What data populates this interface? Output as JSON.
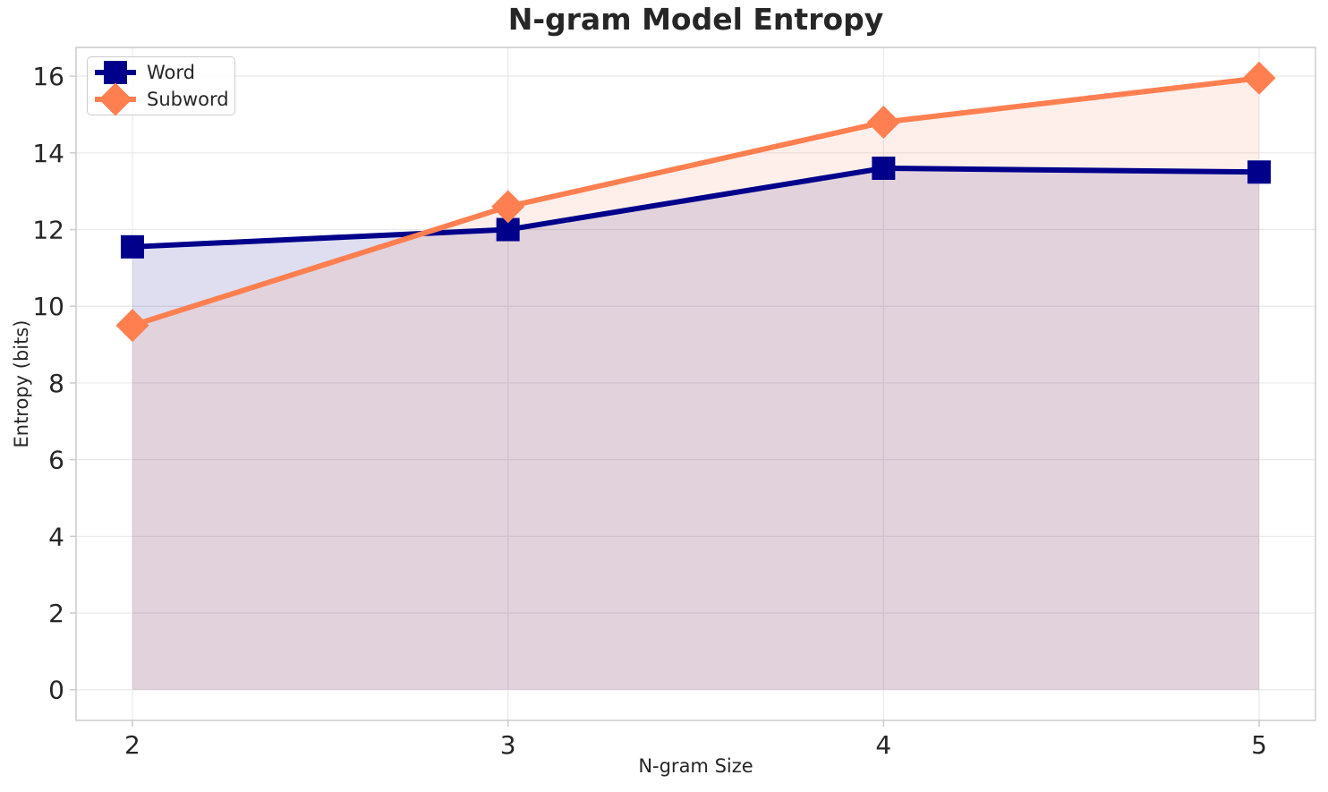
{
  "chart_data": {
    "type": "line",
    "title": "N-gram Model Entropy",
    "xlabel": "N-gram Size",
    "ylabel": "Entropy (bits)",
    "x": [
      2,
      3,
      4,
      5
    ],
    "series": [
      {
        "name": "Word",
        "marker": "square",
        "color": "#00008B",
        "fill_opacity": 0.13,
        "values": [
          11.55,
          12.0,
          13.6,
          13.5
        ]
      },
      {
        "name": "Subword",
        "marker": "diamond",
        "color": "#FF7F50",
        "fill_opacity": 0.12,
        "values": [
          9.5,
          12.6,
          14.8,
          15.95
        ]
      }
    ],
    "fill_to_zero": true,
    "xticks": [
      2,
      3,
      4,
      5
    ],
    "yticks": [
      0,
      2,
      4,
      6,
      8,
      10,
      12,
      14,
      16
    ],
    "xlim": [
      1.85,
      5.15
    ],
    "ylim": [
      -0.8,
      16.75
    ],
    "grid": true,
    "legend_position": "upper left"
  },
  "style": {
    "background": "#FFFFFF",
    "text_color": "#262626",
    "grid_color": "#E9E9E9",
    "spine_color": "#CCCCCC",
    "legend_border_color": "#CCCCCC",
    "legend_background": "rgba(255,255,255,0.8)"
  }
}
